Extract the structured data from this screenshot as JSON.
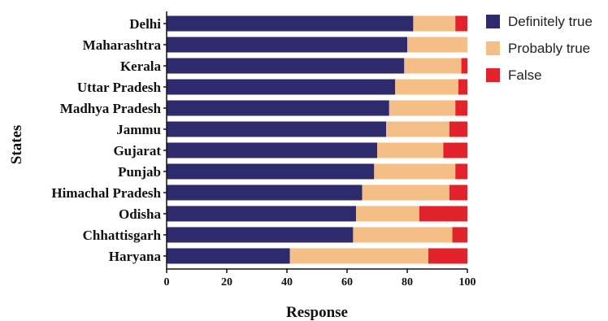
{
  "chart_data": {
    "type": "bar",
    "orientation": "horizontal",
    "stacked": true,
    "categories": [
      "Delhi",
      "Maharashtra",
      "Kerala",
      "Uttar Pradesh",
      "Madhya Pradesh",
      "Jammu",
      "Gujarat",
      "Punjab",
      "Himachal Pradesh",
      "Odisha",
      "Chhattisgarh",
      "Haryana"
    ],
    "series": [
      {
        "name": "Definitely true",
        "color": "#2e2a6e",
        "values": [
          82,
          80,
          79,
          76,
          74,
          73,
          70,
          69,
          65,
          63,
          62,
          41
        ]
      },
      {
        "name": "Probably true",
        "color": "#f5be86",
        "values": [
          14,
          20,
          19,
          21,
          22,
          21,
          22,
          27,
          29,
          21,
          33,
          46
        ]
      },
      {
        "name": "False",
        "color": "#e3232b",
        "values": [
          4,
          0,
          2,
          3,
          4,
          6,
          8,
          4,
          6,
          16,
          5,
          13
        ]
      }
    ],
    "xlabel": "Response",
    "ylabel": "States",
    "xlim": [
      0,
      100
    ],
    "xticks": [
      0,
      20,
      40,
      60,
      80,
      100
    ],
    "legend_position": "top-right",
    "grid": false
  }
}
